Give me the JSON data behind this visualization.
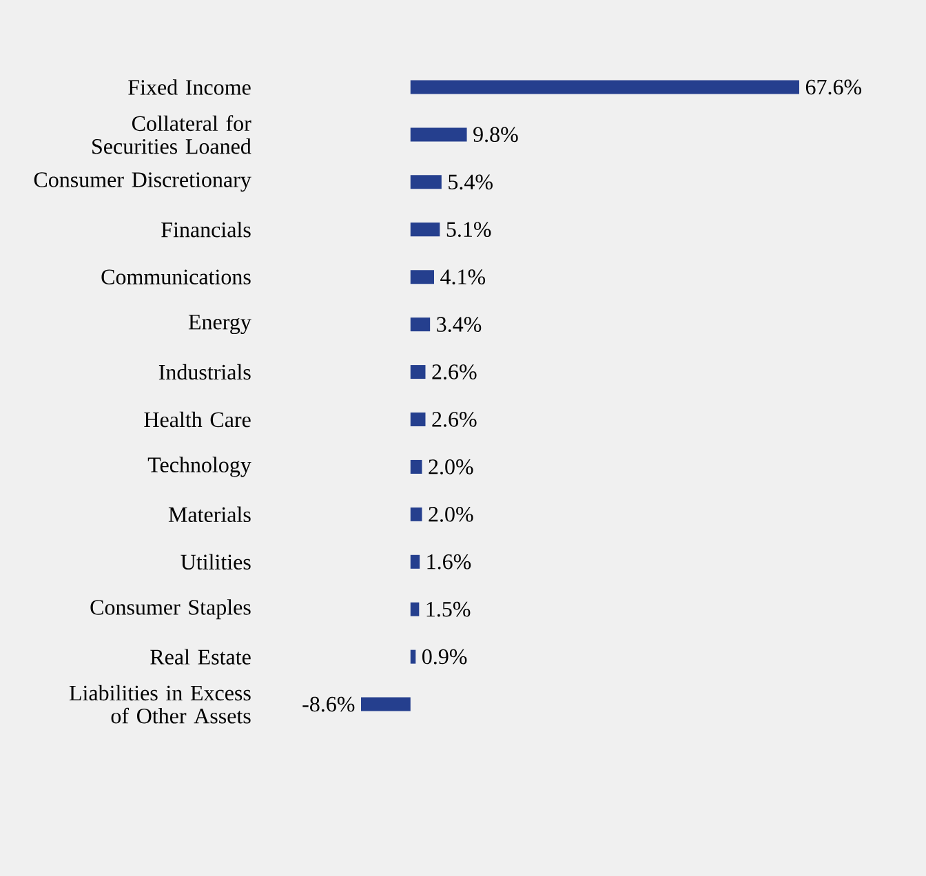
{
  "chart_data": {
    "type": "bar",
    "orientation": "horizontal",
    "categories": [
      "Fixed Income",
      "Collateral for Securities Loaned",
      "Consumer Discretionary",
      "Financials",
      "Communications",
      "Energy",
      "Industrials",
      "Health Care",
      "Technology",
      "Materials",
      "Utilities",
      "Consumer Staples",
      "Real Estate",
      "Liabilities in Excess of Other Assets"
    ],
    "values": [
      67.6,
      9.8,
      5.4,
      5.1,
      4.1,
      3.4,
      2.6,
      2.6,
      2.0,
      2.0,
      1.6,
      1.5,
      0.9,
      -8.6
    ],
    "value_labels": [
      "67.6%",
      "9.8%",
      "5.4%",
      "5.1%",
      "4.1%",
      "3.4%",
      "2.6%",
      "2.6%",
      "2.0%",
      "2.0%",
      "1.6%",
      "1.5%",
      "0.9%",
      "-8.6%"
    ],
    "color": "#253f8e"
  }
}
